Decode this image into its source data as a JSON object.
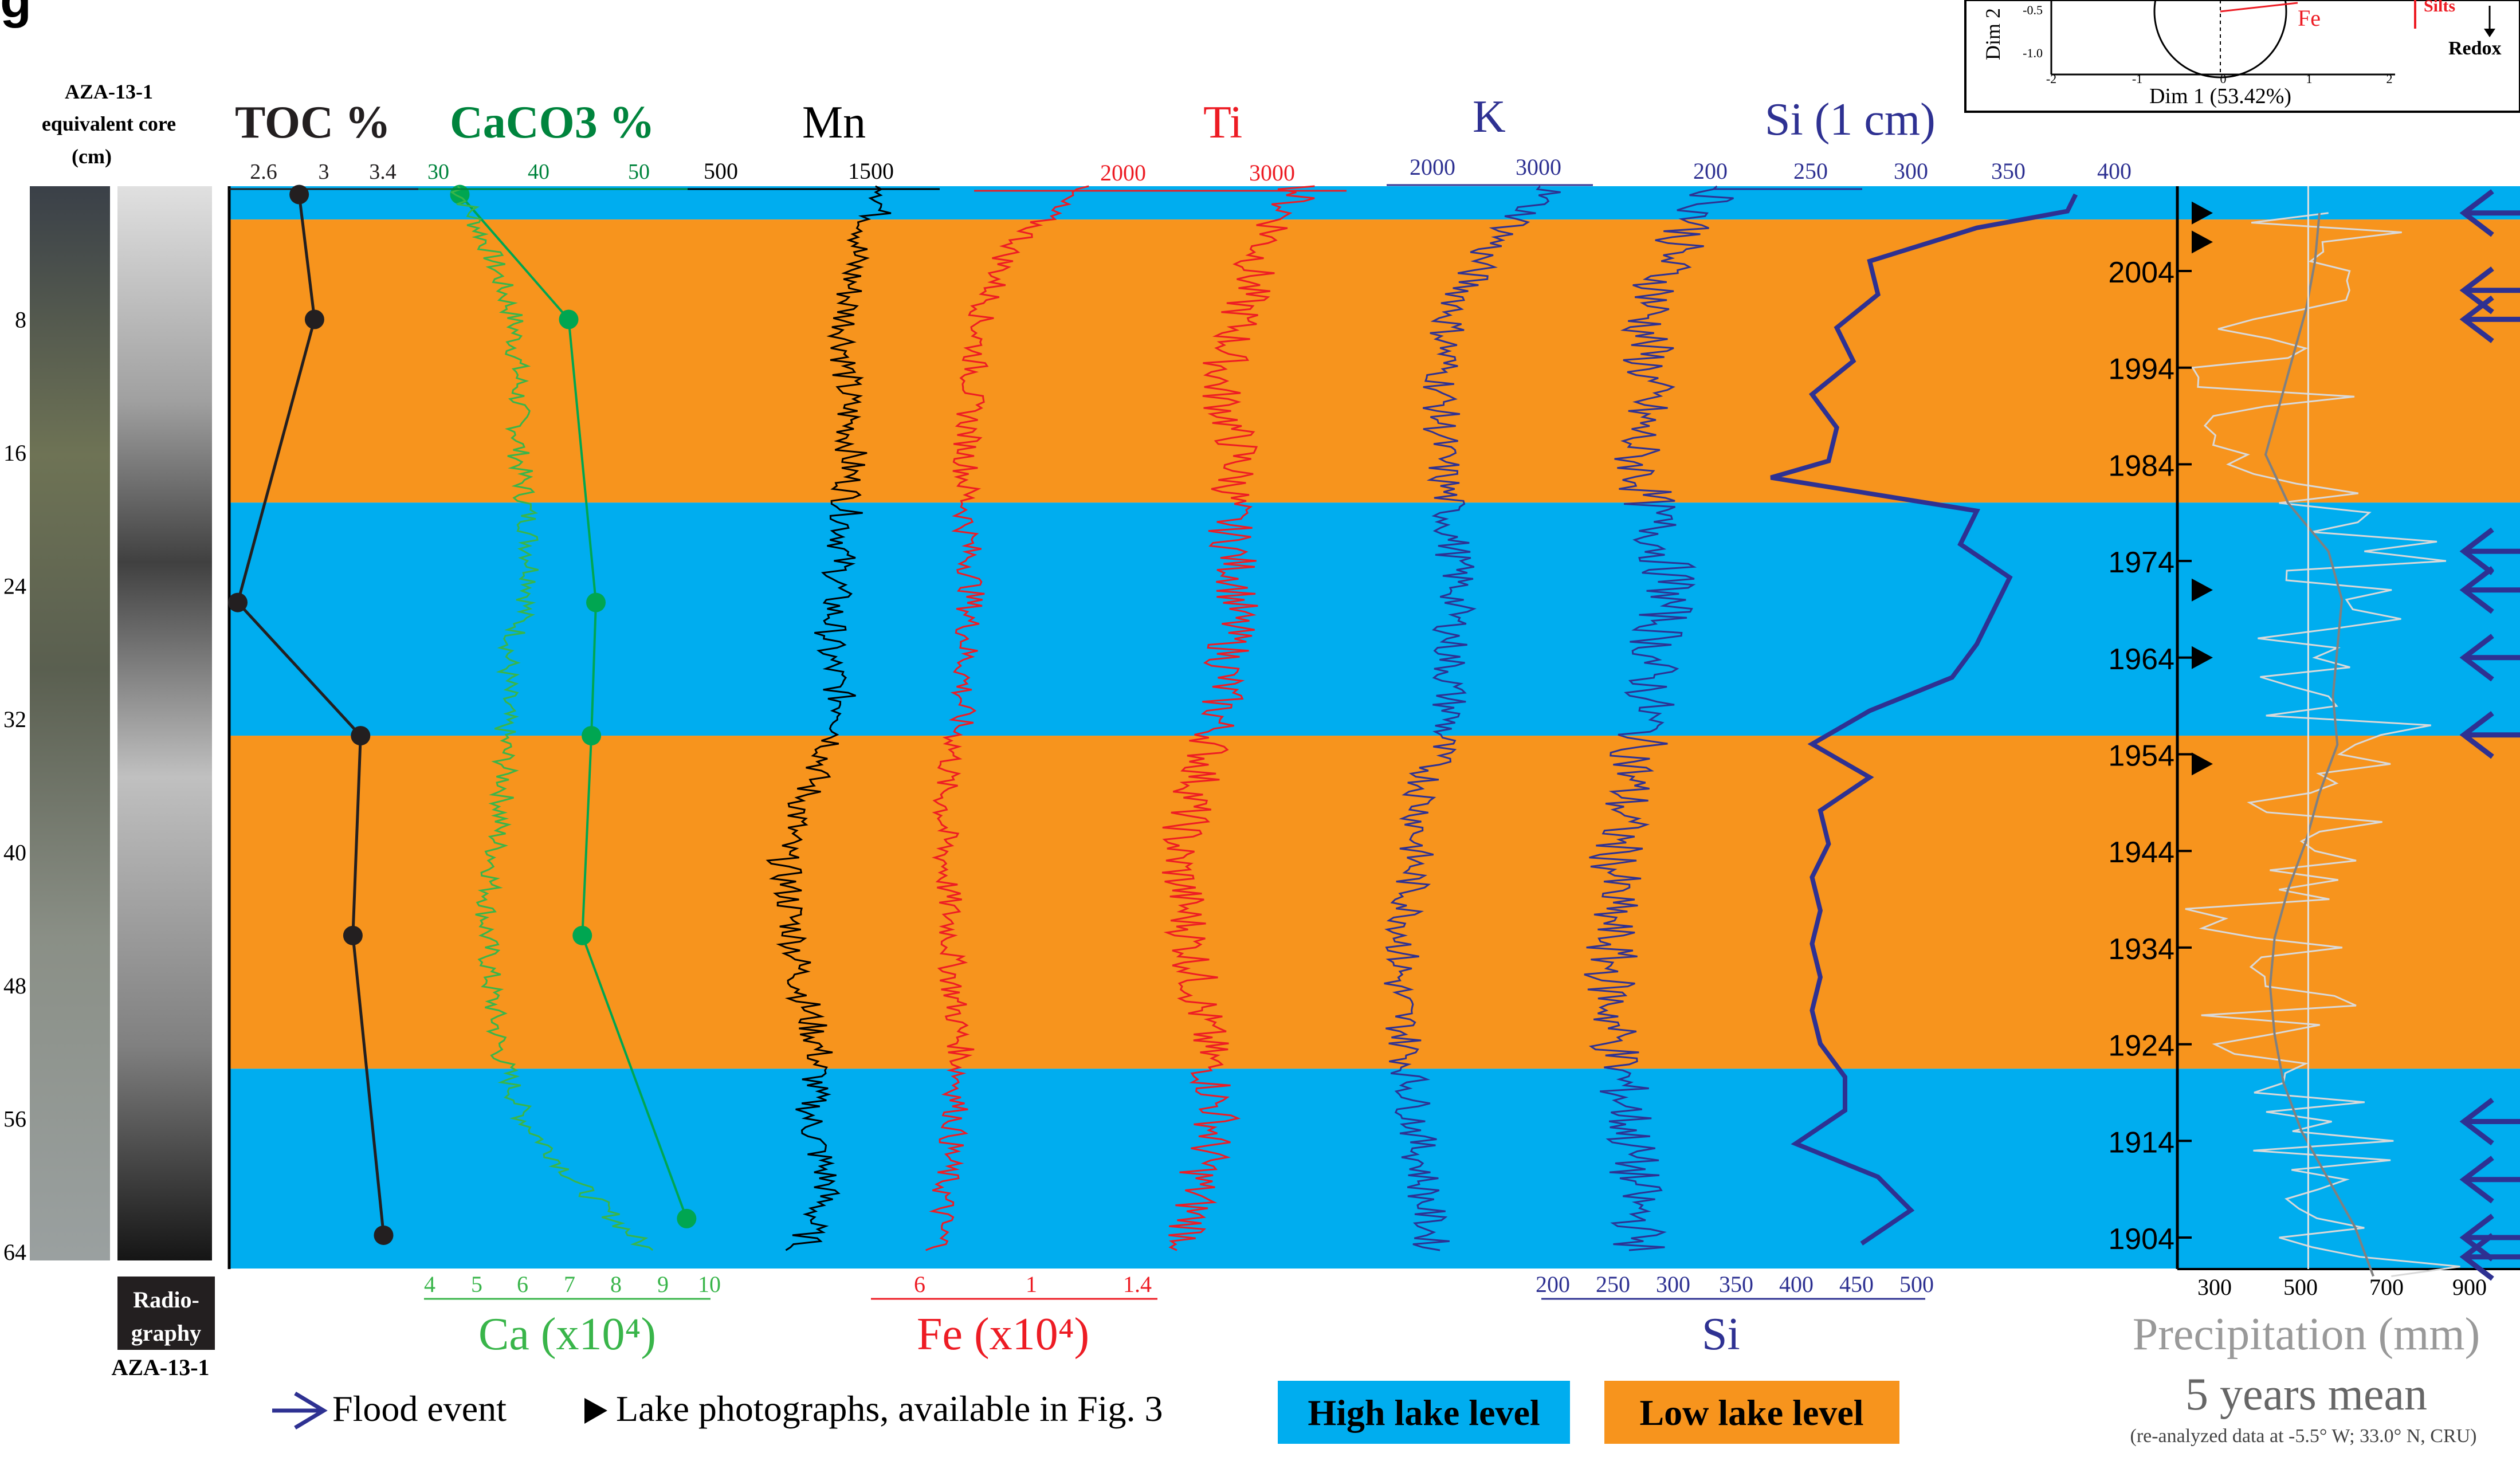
{
  "title_fragment": "g",
  "core": {
    "name_line1": "AZA-13-1",
    "name_line2": "equivalent core",
    "unit": "(cm)",
    "depth_ticks": [
      "8",
      "16",
      "24",
      "32",
      "40",
      "48",
      "56",
      "64"
    ],
    "radiography_line1": "Radio-",
    "radiography_line2": "graphy",
    "bottom_label": "AZA-13-1"
  },
  "pca_inset": {
    "xlabel": "Dim 1 (53.42%)",
    "ylabel": "Dim 2",
    "fe_label": "Fe",
    "silts_label": "Silts",
    "redox_label": "Redox",
    "x_ticks": [
      "-2",
      "-1",
      "0",
      "1",
      "2"
    ],
    "y_ticks": [
      "-0.5",
      "-1.0"
    ]
  },
  "legend": {
    "flood_event": "Flood event",
    "lake_photos": "Lake photographs, available in Fig. 3",
    "high_lake_level": "High lake level",
    "low_lake_level": "Low lake level",
    "colors": {
      "high": "#00adef",
      "low": "#f7941d",
      "flood": "#2e3192",
      "photo": "#000000"
    }
  },
  "chart_data": {
    "type": "line",
    "depth_ticks_cm": [
      8,
      16,
      24,
      32,
      40,
      48,
      56,
      64
    ],
    "year_ticks": [
      2004,
      1994,
      1984,
      1974,
      1964,
      1954,
      1944,
      1934,
      1924,
      1914,
      1904
    ],
    "lake_level_bands_cm": [
      {
        "from": 0,
        "to": 2,
        "level": "high"
      },
      {
        "from": 2,
        "to": 19,
        "level": "low"
      },
      {
        "from": 19,
        "to": 33,
        "level": "high"
      },
      {
        "from": 33,
        "to": 53,
        "level": "low"
      },
      {
        "from": 53,
        "to": 65,
        "level": "high"
      }
    ],
    "flood_event_years": [
      2010,
      2002,
      1999,
      1975,
      1971,
      1964,
      1956,
      1916,
      1910,
      1904,
      1902
    ],
    "lake_photo_years": [
      2010,
      2007,
      1971,
      1964,
      1953
    ],
    "series": [
      {
        "name": "TOC %",
        "color": "#231f20",
        "top_ticks": [
          "2.6",
          "3",
          "3.4"
        ],
        "depth_cm": [
          0.5,
          8,
          25,
          33,
          45,
          63
        ],
        "values": [
          3.0,
          3.1,
          2.6,
          3.4,
          3.35,
          3.55
        ]
      },
      {
        "name": "CaCO3 %",
        "color": "#00a651",
        "top_ticks": [
          "30",
          "40",
          "50"
        ],
        "depth_cm": [
          0.5,
          8,
          25,
          33,
          45,
          62
        ],
        "values": [
          31,
          43,
          46,
          45.5,
          44.5,
          56
        ]
      },
      {
        "name": "Ca (x10⁴)",
        "color": "#39b54a",
        "bottom_ticks": [
          "4",
          "5",
          "6",
          "7",
          "8",
          "9",
          "10"
        ],
        "depth_cm": [
          0,
          4,
          8,
          12,
          16,
          20,
          24,
          28,
          32,
          36,
          40,
          44,
          48,
          52,
          56,
          60,
          64
        ],
        "values": [
          4.6,
          5.3,
          5.8,
          5.9,
          5.9,
          6.1,
          6.2,
          5.7,
          5.6,
          5.6,
          5.4,
          5.2,
          5.3,
          5.5,
          6.0,
          7.2,
          8.7
        ]
      },
      {
        "name": "Mn",
        "color": "#000000",
        "top_ticks": [
          "500",
          "1500"
        ],
        "depth_cm": [
          0,
          4,
          8,
          12,
          16,
          20,
          24,
          28,
          32,
          36,
          40,
          44,
          48,
          52,
          56,
          60,
          64
        ],
        "values": [
          1400,
          1200,
          1150,
          1150,
          1180,
          1150,
          1100,
          1050,
          1150,
          950,
          800,
          850,
          900,
          1000,
          950,
          1050,
          900
        ]
      },
      {
        "name": "Ti",
        "color": "#ed1c24",
        "top_ticks": [
          "2000",
          "3000"
        ],
        "depth_cm": [
          0,
          4,
          8,
          12,
          16,
          20,
          24,
          28,
          32,
          36,
          40,
          44,
          48,
          52,
          56,
          60,
          64
        ],
        "values": [
          3000,
          2800,
          2700,
          2600,
          2700,
          2650,
          2700,
          2650,
          2600,
          2500,
          2400,
          2450,
          2500,
          2550,
          2600,
          2500,
          2450
        ]
      },
      {
        "name": "Fe (x10⁴)",
        "color": "#ed1c24",
        "bottom_ticks": [
          "6",
          "1",
          "1.4"
        ],
        "depth_cm": [
          0,
          4,
          8,
          12,
          16,
          20,
          24,
          28,
          32,
          36,
          40,
          44,
          48,
          52,
          56,
          60,
          64
        ],
        "values": [
          1.2,
          0.95,
          0.85,
          0.82,
          0.8,
          0.8,
          0.82,
          0.8,
          0.78,
          0.72,
          0.72,
          0.74,
          0.75,
          0.78,
          0.76,
          0.72,
          0.7
        ]
      },
      {
        "name": "K",
        "color": "#2e3192",
        "top_ticks": [
          "2000",
          "3000"
        ],
        "depth_cm": [
          0,
          4,
          8,
          12,
          16,
          20,
          24,
          28,
          32,
          36,
          40,
          44,
          48,
          52,
          56,
          60,
          64
        ],
        "values": [
          2900,
          2500,
          2300,
          2250,
          2250,
          2300,
          2350,
          2300,
          2300,
          2150,
          2100,
          2050,
          2000,
          2050,
          2100,
          2150,
          2200
        ]
      },
      {
        "name": "Si",
        "color": "#2e3192",
        "top_ticks": [
          "200",
          "250",
          "300",
          "350",
          "400"
        ],
        "bottom_ticks": [
          "200",
          "250",
          "300",
          "350",
          "400",
          "450",
          "500"
        ],
        "depth_cm": [
          0,
          4,
          8,
          12,
          16,
          20,
          24,
          28,
          32,
          36,
          40,
          44,
          48,
          52,
          56,
          60,
          64
        ],
        "values": [
          330,
          290,
          270,
          270,
          260,
          275,
          290,
          275,
          270,
          255,
          245,
          240,
          240,
          245,
          255,
          260,
          265
        ]
      },
      {
        "name": "Si (1 cm)",
        "color": "#2e3192",
        "depth_cm": [
          0.5,
          1.5,
          2.5,
          4.5,
          6.5,
          8.5,
          10.5,
          12.5,
          14.5,
          16.5,
          17.5,
          19.5,
          21.5,
          23.5,
          25.5,
          27.5,
          29.5,
          31.5,
          33.5,
          35.5,
          37.5,
          39.5,
          41.5,
          43.5,
          45.5,
          47.5,
          49.5,
          51.5,
          53.5,
          55.5,
          57.5,
          59.5,
          61.5,
          63.5
        ],
        "values": [
          400,
          395,
          340,
          275,
          280,
          255,
          265,
          240,
          255,
          250,
          215,
          340,
          330,
          360,
          350,
          340,
          325,
          275,
          240,
          275,
          245,
          250,
          240,
          245,
          240,
          245,
          240,
          245,
          260,
          260,
          230,
          280,
          300,
          270
        ]
      },
      {
        "name": "Precipitation (mm)",
        "color": "#808080",
        "axis_ticks": [
          "300",
          "500",
          "700",
          "900"
        ],
        "year": [
          2010,
          2005,
          2000,
          1995,
          1990,
          1985,
          1980,
          1975,
          1970,
          1965,
          1960,
          1955,
          1950,
          1945,
          1940,
          1935,
          1930,
          1925,
          1920,
          1915,
          1910,
          1905,
          1900
        ],
        "values": [
          560,
          520,
          500,
          470,
          420,
          380,
          450,
          640,
          600,
          580,
          560,
          620,
          520,
          500,
          450,
          400,
          420,
          430,
          460,
          480,
          600,
          640,
          700
        ]
      },
      {
        "name": "5 years mean",
        "color": "#c8c8c8",
        "year": [
          2010,
          2005,
          2000,
          1995,
          1990,
          1985,
          1980,
          1975,
          1970,
          1965,
          1960,
          1955,
          1950,
          1945,
          1940,
          1935,
          1930,
          1925,
          1920,
          1915,
          1910,
          1905,
          1900
        ],
        "values": [
          540,
          530,
          510,
          480,
          450,
          420,
          470,
          560,
          590,
          580,
          570,
          580,
          540,
          510,
          470,
          440,
          430,
          440,
          460,
          500,
          560,
          620,
          660
        ]
      }
    ],
    "labels": {
      "toc": "TOC %",
      "caco3": "CaCO3 %",
      "mn": "Mn",
      "ti": "Ti",
      "k": "K",
      "si1cm": "Si (1 cm)",
      "ca": "Ca (x10⁴)",
      "fe": "Fe (x10⁴)",
      "si": "Si",
      "precip": "Precipitation (mm)",
      "mean5": "5 years mean",
      "precip_note": "(re-analyzed data at -5.5° W; 33.0° N, CRU)"
    }
  }
}
